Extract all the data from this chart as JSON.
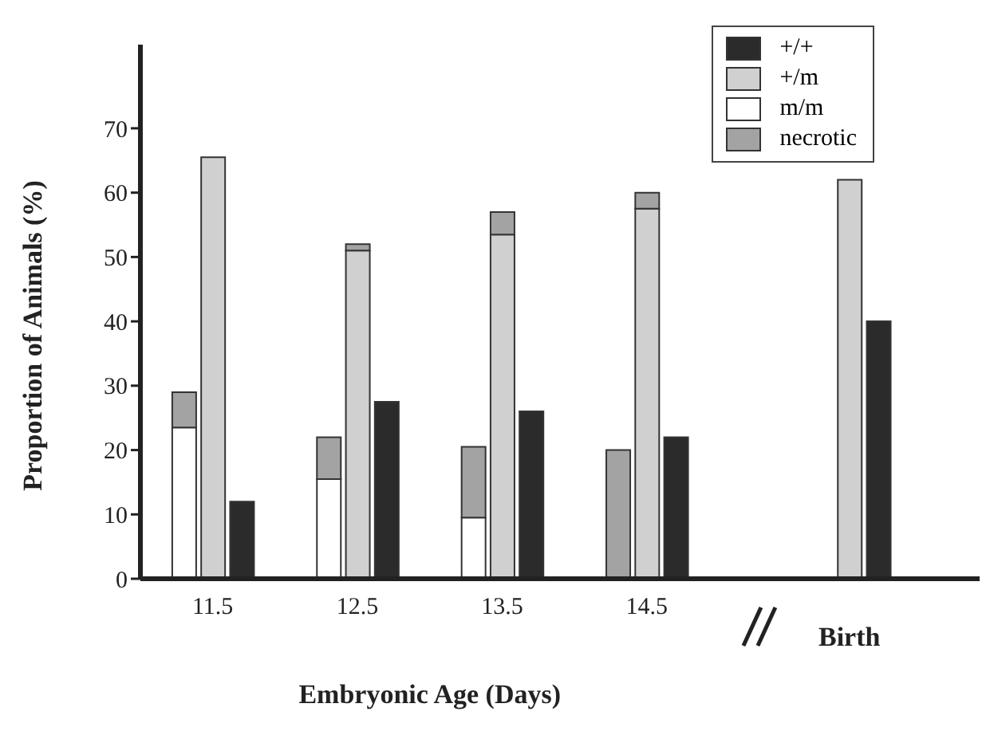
{
  "chart_data": {
    "type": "bar",
    "stacked": true,
    "xlabel": "Embryonic Age (Days)",
    "ylabel": "Proportion of Animals (%)",
    "categories": [
      null,
      null,
      "11.5",
      null,
      null,
      null,
      null,
      "12.5",
      null,
      null,
      null,
      null,
      "13.5",
      null,
      null,
      null,
      null,
      "14.5",
      null,
      null,
      null,
      null,
      null,
      null,
      "Birth",
      null,
      null,
      null,
      null
    ],
    "series": [
      {
        "name": "+/+",
        "color": "#2b2b2b",
        "values": [
          null,
          null,
          null,
          12,
          null,
          null,
          null,
          null,
          27.5,
          null,
          null,
          null,
          null,
          26,
          null,
          null,
          null,
          null,
          22,
          null,
          null,
          null,
          null,
          null,
          null,
          40,
          null,
          null,
          null
        ]
      },
      {
        "name": "+/m",
        "color": "#d0d0d0",
        "values": [
          null,
          null,
          65.5,
          null,
          null,
          null,
          null,
          51,
          null,
          null,
          null,
          null,
          53.5,
          null,
          null,
          null,
          null,
          57.5,
          null,
          null,
          null,
          null,
          null,
          null,
          62,
          null,
          null,
          null,
          null
        ]
      },
      {
        "name": "m/m",
        "color": "#ffffff",
        "values": [
          null,
          23.5,
          null,
          null,
          null,
          null,
          15.5,
          null,
          null,
          null,
          null,
          9.5,
          null,
          null,
          null,
          null,
          null,
          null,
          null,
          null,
          null,
          null,
          null,
          null,
          null,
          null,
          null,
          null,
          null
        ]
      },
      {
        "name": "necrotic",
        "color": "#a3a3a3",
        "values": [
          null,
          5.5,
          null,
          null,
          null,
          null,
          6.5,
          1,
          null,
          null,
          null,
          11,
          3.5,
          null,
          null,
          null,
          20,
          2.5,
          null,
          null,
          null,
          null,
          null,
          null,
          null,
          null,
          null,
          null,
          null
        ]
      }
    ],
    "ylim": [
      0,
      83
    ],
    "yticks": [
      0,
      10,
      20,
      30,
      40,
      50,
      60,
      70
    ],
    "grid": false,
    "legend": "top right"
  }
}
